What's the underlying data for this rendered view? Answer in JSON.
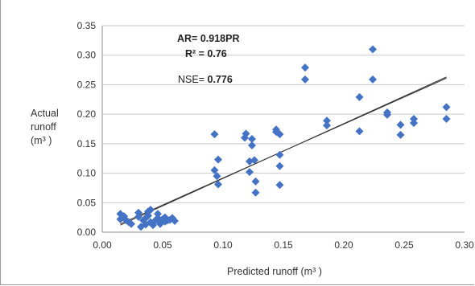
{
  "chart_data": {
    "type": "scatter",
    "xlabel": "Predicted runoff (m³ )",
    "ylabel_lines": [
      "Actual",
      "runoff",
      "(m³ )"
    ],
    "xlim": [
      0,
      0.3
    ],
    "ylim": [
      0,
      0.35
    ],
    "x_ticks": [
      "0.00",
      "0.05",
      "0.10",
      "0.15",
      "0.20",
      "0.25",
      "0.30"
    ],
    "y_ticks": [
      "0.00",
      "0.05",
      "0.10",
      "0.15",
      "0.20",
      "0.25",
      "0.30",
      "0.35"
    ],
    "grid": "horizontal",
    "marker_color": "#4472c4",
    "annotations": {
      "ar": "AR= 0.918PR",
      "r2": "R² = 0.76",
      "nse_label": "NSE=",
      "nse_value": "0.776"
    },
    "trendlines": [
      {
        "x": [
          0.015,
          0.285
        ],
        "y": [
          0.012,
          0.263
        ]
      },
      {
        "x": [
          0.015,
          0.285
        ],
        "y": [
          0.014,
          0.261
        ]
      }
    ],
    "points": [
      [
        0.015,
        0.031
      ],
      [
        0.015,
        0.022
      ],
      [
        0.018,
        0.027
      ],
      [
        0.02,
        0.02
      ],
      [
        0.022,
        0.017
      ],
      [
        0.024,
        0.014
      ],
      [
        0.03,
        0.033
      ],
      [
        0.03,
        0.026
      ],
      [
        0.032,
        0.009
      ],
      [
        0.034,
        0.02
      ],
      [
        0.036,
        0.024
      ],
      [
        0.036,
        0.013
      ],
      [
        0.038,
        0.028
      ],
      [
        0.038,
        0.035
      ],
      [
        0.04,
        0.017
      ],
      [
        0.04,
        0.038
      ],
      [
        0.042,
        0.012
      ],
      [
        0.044,
        0.02
      ],
      [
        0.046,
        0.031
      ],
      [
        0.046,
        0.024
      ],
      [
        0.048,
        0.017
      ],
      [
        0.048,
        0.014
      ],
      [
        0.05,
        0.022
      ],
      [
        0.052,
        0.018
      ],
      [
        0.052,
        0.025
      ],
      [
        0.054,
        0.02
      ],
      [
        0.056,
        0.021
      ],
      [
        0.058,
        0.024
      ],
      [
        0.06,
        0.019
      ],
      [
        0.093,
        0.166
      ],
      [
        0.093,
        0.105
      ],
      [
        0.095,
        0.095
      ],
      [
        0.096,
        0.081
      ],
      [
        0.096,
        0.123
      ],
      [
        0.118,
        0.16
      ],
      [
        0.119,
        0.167
      ],
      [
        0.122,
        0.102
      ],
      [
        0.122,
        0.12
      ],
      [
        0.124,
        0.158
      ],
      [
        0.124,
        0.147
      ],
      [
        0.126,
        0.122
      ],
      [
        0.127,
        0.086
      ],
      [
        0.127,
        0.067
      ],
      [
        0.144,
        0.174
      ],
      [
        0.144,
        0.17
      ],
      [
        0.147,
        0.166
      ],
      [
        0.147,
        0.131
      ],
      [
        0.147,
        0.112
      ],
      [
        0.147,
        0.08
      ],
      [
        0.168,
        0.279
      ],
      [
        0.168,
        0.259
      ],
      [
        0.186,
        0.189
      ],
      [
        0.186,
        0.181
      ],
      [
        0.213,
        0.229
      ],
      [
        0.213,
        0.171
      ],
      [
        0.224,
        0.31
      ],
      [
        0.224,
        0.259
      ],
      [
        0.236,
        0.203
      ],
      [
        0.236,
        0.199
      ],
      [
        0.247,
        0.182
      ],
      [
        0.247,
        0.165
      ],
      [
        0.258,
        0.192
      ],
      [
        0.258,
        0.185
      ],
      [
        0.285,
        0.212
      ],
      [
        0.285,
        0.192
      ]
    ]
  }
}
